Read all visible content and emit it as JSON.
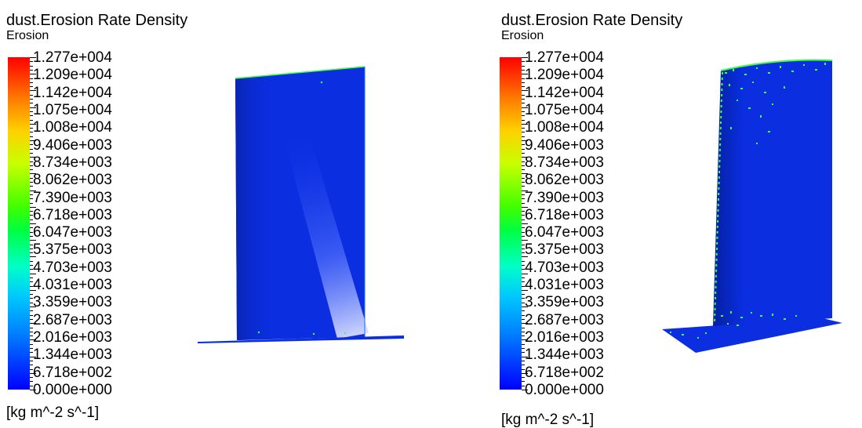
{
  "panels": [
    {
      "title": "dust.Erosion Rate Density",
      "subtitle": "Erosion",
      "unit": "[kg m^-2 s^-1]",
      "legend": [
        "1.277e+004",
        "1.209e+004",
        "1.142e+004",
        "1.075e+004",
        "1.008e+004",
        "9.406e+003",
        "8.734e+003",
        "8.062e+003",
        "7.390e+003",
        "6.718e+003",
        "6.047e+003",
        "5.375e+003",
        "4.703e+003",
        "4.031e+003",
        "3.359e+003",
        "2.687e+003",
        "2.016e+003",
        "1.344e+003",
        "6.718e+002",
        "0.000e+000"
      ]
    },
    {
      "title": "dust.Erosion Rate Density",
      "subtitle": "Erosion",
      "unit": "[kg m^-2 s^-1]",
      "legend": [
        "1.277e+004",
        "1.209e+004",
        "1.142e+004",
        "1.075e+004",
        "1.008e+004",
        "9.406e+003",
        "8.734e+003",
        "8.062e+003",
        "7.390e+003",
        "6.718e+003",
        "6.047e+003",
        "5.375e+003",
        "4.703e+003",
        "4.031e+003",
        "3.359e+003",
        "2.687e+003",
        "2.016e+003",
        "1.344e+003",
        "6.718e+002",
        "0.000e+000"
      ]
    }
  ],
  "colormap": [
    "#ff0000",
    "#ff8000",
    "#ffd000",
    "#c8ff00",
    "#40ff00",
    "#00ff40",
    "#00ffc8",
    "#00c8ff",
    "#0080ff",
    "#0000ff"
  ],
  "surface_color": "#0a2ee0",
  "highlight_color": "#40ff40"
}
